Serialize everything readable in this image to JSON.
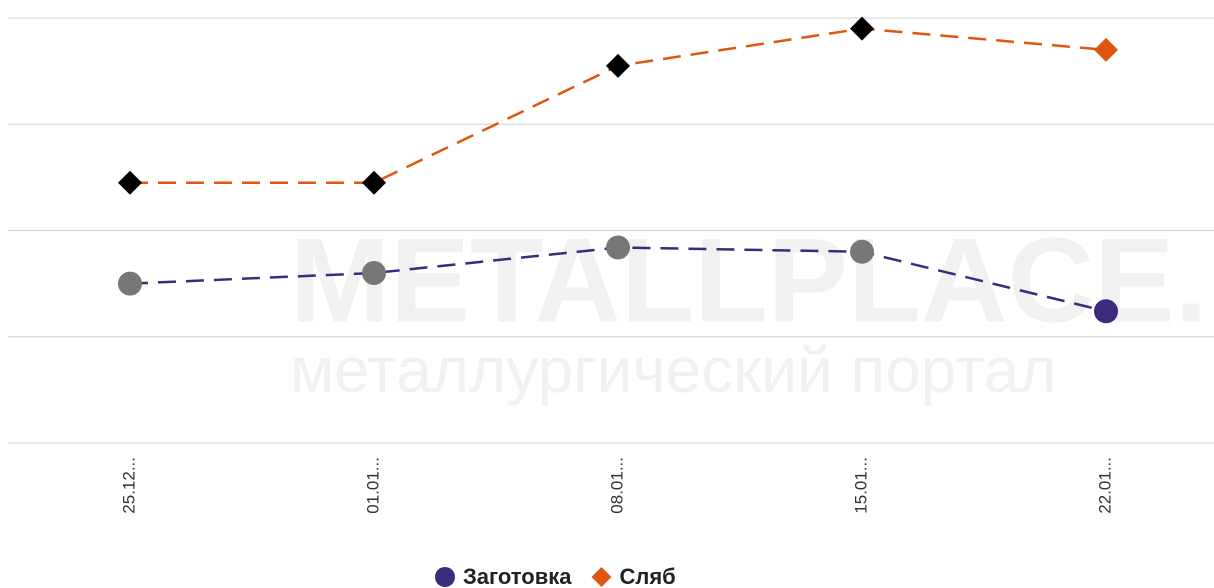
{
  "chart_data": {
    "type": "line",
    "categories": [
      "25.12...",
      "01.01...",
      "08.01...",
      "15.01...",
      "22.01..."
    ],
    "series": [
      {
        "name": "Заготовка",
        "color": "#3b2a7e",
        "point_colors": [
          "#777777",
          "#777777",
          "#777777",
          "#777777",
          "#3b2a7e"
        ],
        "marker": "circle",
        "values": [
          1.5,
          1.6,
          1.84,
          1.8,
          1.24
        ]
      },
      {
        "name": "Сляб",
        "color": "#e0560f",
        "point_colors": [
          "#000000",
          "#000000",
          "#000000",
          "#000000",
          "#e0560f"
        ],
        "marker": "diamond",
        "values": [
          2.45,
          2.45,
          3.55,
          3.9,
          3.7
        ]
      }
    ],
    "ylim": [
      0,
      4
    ],
    "yticks": [
      0,
      1,
      2,
      3,
      4
    ],
    "grid": true,
    "watermark": [
      "METALLPLACE.RU",
      "металлургический портал"
    ]
  }
}
